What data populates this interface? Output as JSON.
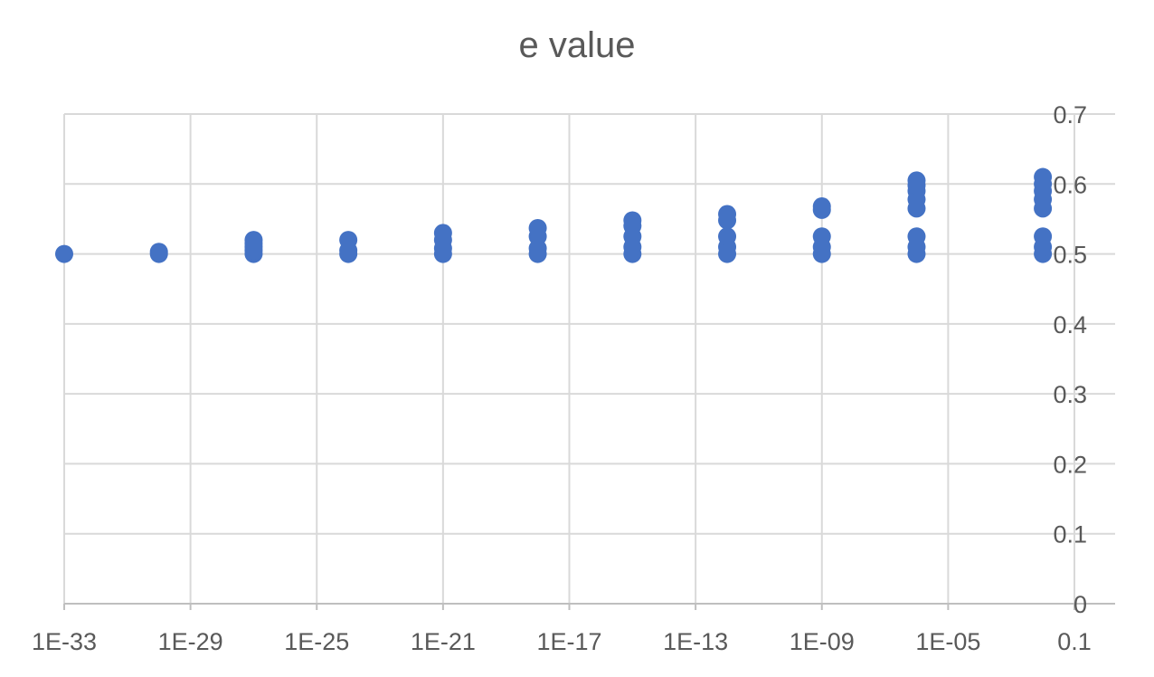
{
  "chart_data": {
    "type": "scatter",
    "title": "e value",
    "xlabel": "",
    "ylabel": "",
    "x_scale": "log",
    "x_tick_labels": [
      "1E-33",
      "1E-29",
      "1E-25",
      "1E-21",
      "1E-17",
      "1E-13",
      "1E-09",
      "1E-05",
      "0.1"
    ],
    "xlim": [
      "1E-33",
      "0.1"
    ],
    "y_tick_labels": [
      "0",
      "0.1",
      "0.2",
      "0.3",
      "0.4",
      "0.5",
      "0.6",
      "0.7"
    ],
    "ylim": [
      0,
      0.7
    ],
    "grid": true,
    "legend": "none",
    "marker_color": "#4472C4",
    "series": [
      {
        "points": [
          {
            "x": "1E-33",
            "y": 0.5
          },
          {
            "x": "1E-30",
            "y": 0.5
          },
          {
            "x": "1E-30",
            "y": 0.503
          },
          {
            "x": "1E-27",
            "y": 0.5
          },
          {
            "x": "1E-27",
            "y": 0.505
          },
          {
            "x": "1E-27",
            "y": 0.51
          },
          {
            "x": "1E-27",
            "y": 0.515
          },
          {
            "x": "1E-27",
            "y": 0.52
          },
          {
            "x": "1E-24",
            "y": 0.5
          },
          {
            "x": "1E-24",
            "y": 0.505
          },
          {
            "x": "1E-24",
            "y": 0.52
          },
          {
            "x": "1E-21",
            "y": 0.5
          },
          {
            "x": "1E-21",
            "y": 0.508
          },
          {
            "x": "1E-21",
            "y": 0.52
          },
          {
            "x": "1E-21",
            "y": 0.53
          },
          {
            "x": "1E-18",
            "y": 0.5
          },
          {
            "x": "1E-18",
            "y": 0.508
          },
          {
            "x": "1E-18",
            "y": 0.525
          },
          {
            "x": "1E-18",
            "y": 0.537
          },
          {
            "x": "1E-15",
            "y": 0.5
          },
          {
            "x": "1E-15",
            "y": 0.51
          },
          {
            "x": "1E-15",
            "y": 0.525
          },
          {
            "x": "1E-15",
            "y": 0.54
          },
          {
            "x": "1E-15",
            "y": 0.548
          },
          {
            "x": "1E-12",
            "y": 0.5
          },
          {
            "x": "1E-12",
            "y": 0.51
          },
          {
            "x": "1E-12",
            "y": 0.525
          },
          {
            "x": "1E-12",
            "y": 0.548
          },
          {
            "x": "1E-12",
            "y": 0.557
          },
          {
            "x": "1E-09",
            "y": 0.5
          },
          {
            "x": "1E-09",
            "y": 0.51
          },
          {
            "x": "1E-09",
            "y": 0.525
          },
          {
            "x": "1E-09",
            "y": 0.563
          },
          {
            "x": "1E-09",
            "y": 0.568
          },
          {
            "x": "1E-06",
            "y": 0.5
          },
          {
            "x": "1E-06",
            "y": 0.51
          },
          {
            "x": "1E-06",
            "y": 0.525
          },
          {
            "x": "1E-06",
            "y": 0.565
          },
          {
            "x": "1E-06",
            "y": 0.578
          },
          {
            "x": "1E-06",
            "y": 0.59
          },
          {
            "x": "1E-06",
            "y": 0.598
          },
          {
            "x": "1E-06",
            "y": 0.605
          },
          {
            "x": "0.01",
            "y": 0.5
          },
          {
            "x": "0.01",
            "y": 0.51
          },
          {
            "x": "0.01",
            "y": 0.525
          },
          {
            "x": "0.01",
            "y": 0.565
          },
          {
            "x": "0.01",
            "y": 0.578
          },
          {
            "x": "0.01",
            "y": 0.59
          },
          {
            "x": "0.01",
            "y": 0.6
          },
          {
            "x": "0.01",
            "y": 0.61
          }
        ]
      }
    ]
  }
}
